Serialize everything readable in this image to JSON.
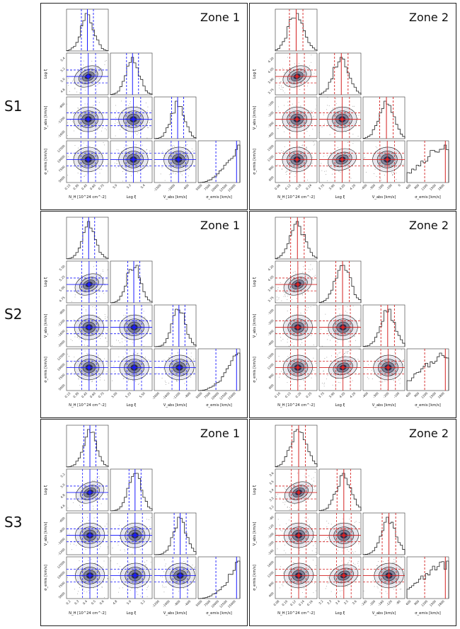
{
  "figure": {
    "rows": [
      {
        "label": "S1",
        "panels": [
          {
            "zone": "Zone 1",
            "color": "#1a1aff",
            "params": [
              "N_H [10^24 cm^-2]",
              "Log ξ",
              "V_abs [km/s]",
              "σ_emis [km/s]"
            ],
            "xticks": [
              [
                "0.15",
                "0.30",
                "0.45",
                "0.60",
                "0.75"
              ],
              [
                "5.0",
                "5.2",
                "5.4"
              ],
              [
                "-1500",
                "-1000",
                "-600"
              ],
              [
                "5000",
                "7500",
                "10000",
                "12500",
                "15000"
              ]
            ],
            "yticks": [
              [
                "4.8",
                "5.0",
                "5.2",
                "5.4"
              ],
              [
                "-1600",
                "-1200",
                "-800"
              ],
              [
                "5000",
                "7500",
                "10000",
                "12500"
              ]
            ]
          },
          {
            "zone": "Zone 2",
            "color": "#d42020",
            "params": [
              "N_H [10^24 cm^-2]",
              "Log ξ",
              "V_abs [km/s]",
              "σ_emis [km/s]"
            ],
            "xticks": [
              [
                "0.06",
                "0.12",
                "0.18",
                "0.24"
              ],
              [
                "3.75",
                "3.90",
                "4.05",
                "4.20"
              ],
              [
                "-400",
                "-300",
                "-200",
                "-100",
                "0"
              ],
              [
                "600",
                "900",
                "1200",
                "1500",
                "1800"
              ]
            ],
            "yticks": [
              [
                "3.75",
                "3.90",
                "4.05",
                "4.20"
              ],
              [
                "-400",
                "-300",
                "-200",
                "-100"
              ],
              [
                "600",
                "900",
                "1200",
                "1500"
              ]
            ]
          }
        ]
      },
      {
        "label": "S2",
        "panels": [
          {
            "zone": "Zone 1",
            "color": "#1a1aff",
            "params": [
              "N_H [10^24 cm^-2]",
              "Log ξ",
              "V_abs [km/s]",
              "σ_emis [km/s]"
            ],
            "xticks": [
              [
                "0.15",
                "0.30",
                "0.45",
                "0.60",
                "0.75"
              ],
              [
                "5.00",
                "5.25",
                "5.50"
              ],
              [
                "-2000",
                "-1600",
                "-1200",
                "-800"
              ],
              [
                "5000",
                "7500",
                "10000",
                "12500",
                "15000"
              ]
            ],
            "yticks": [
              [
                "4.75",
                "5.00",
                "5.25",
                "5.50"
              ],
              [
                "-2000",
                "-1600",
                "-1200",
                "-800"
              ],
              [
                "5000",
                "7500",
                "10000",
                "12500"
              ]
            ]
          },
          {
            "zone": "Zone 2",
            "color": "#d42020",
            "params": [
              "N_H [10^24 cm^-2]",
              "Log ξ",
              "V_abs [km/s]",
              "σ_emis [km/s]"
            ],
            "xticks": [
              [
                "0.10",
                "0.15",
                "0.20",
                "0.25"
              ],
              [
                "3.75",
                "3.90",
                "4.05",
                "4.20"
              ],
              [
                "-400",
                "-300",
                "-200",
                "-100"
              ],
              [
                "600",
                "900",
                "1200",
                "1500",
                "1800"
              ]
            ],
            "yticks": [
              [
                "3.75",
                "3.90",
                "4.05",
                "4.20"
              ],
              [
                "-400",
                "-300",
                "-200",
                "-100"
              ],
              [
                "600",
                "900",
                "1200",
                "1500"
              ]
            ]
          }
        ]
      },
      {
        "label": "S3",
        "panels": [
          {
            "zone": "Zone 1",
            "color": "#1a1aff",
            "params": [
              "N_H [10^24 cm^-2]",
              "Log ξ",
              "V_abs [km/s]",
              "σ_emis [km/s]"
            ],
            "xticks": [
              [
                "0.2",
                "0.3",
                "0.4",
                "0.5",
                "0.6"
              ],
              [
                "4.8",
                "5.0",
                "5.2"
              ],
              [
                "-1200",
                "-1000",
                "-800",
                "-600"
              ],
              [
                "5000",
                "7500",
                "10000",
                "12500",
                "15000"
              ]
            ],
            "yticks": [
              [
                "4.6",
                "4.8",
                "5.0",
                "5.2"
              ],
              [
                "-1200",
                "-1000",
                "-800",
                "-600"
              ],
              [
                "5000",
                "7500",
                "10000",
                "12500"
              ]
            ]
          },
          {
            "zone": "Zone 2",
            "color": "#d42020",
            "params": [
              "N_H [10^24 cm^-2]",
              "Log ξ",
              "V_abs [km/s]",
              "σ_emis [km/s]"
            ],
            "xticks": [
              [
                "0.08",
                "0.10",
                "0.12",
                "0.14",
                "0.16"
              ],
              [
                "3.2",
                "3.3",
                "3.4",
                "3.5",
                "3.6"
              ],
              [
                "-240",
                "-200",
                "-160",
                "-120",
                "-80"
              ],
              [
                "600",
                "900",
                "1200",
                "1500",
                "1800"
              ]
            ],
            "yticks": [
              [
                "3.2",
                "3.3",
                "3.4",
                "3.5",
                "3.6"
              ],
              [
                "-240",
                "-200",
                "-160",
                "-120",
                "-80"
              ],
              [
                "400",
                "800",
                "1200",
                "1600"
              ]
            ]
          }
        ]
      }
    ]
  },
  "chart_data": {
    "type": "scatter",
    "subtype": "corner-plot",
    "note": "Posterior distributions (histograms on diagonal, 2-D density contours off-diagonal) for 4 parameters across 3 epochs and 2 absorption zones",
    "legend": "none",
    "grid": false
  }
}
